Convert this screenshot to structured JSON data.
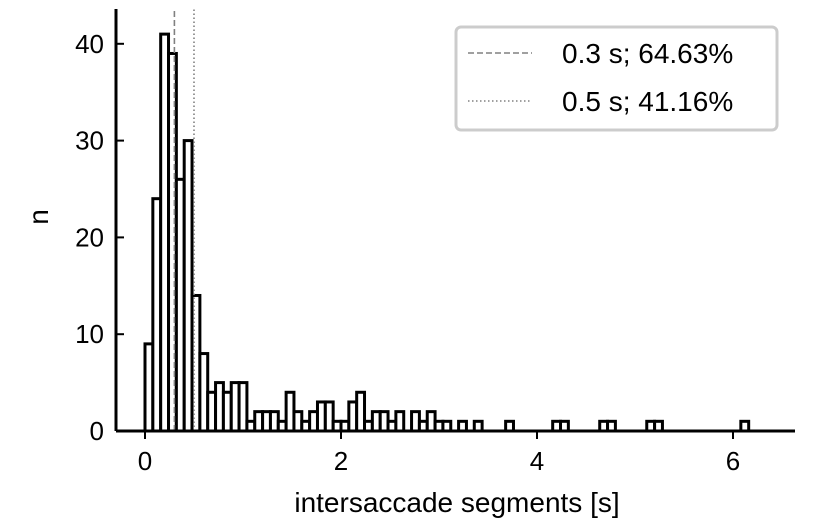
{
  "chart_data": {
    "type": "bar",
    "title": "",
    "xlabel": "intersaccade segments [s]",
    "ylabel": "n",
    "xlim": [
      -0.3,
      6.6
    ],
    "ylim": [
      0,
      43
    ],
    "xticks": [
      "0",
      "2",
      "4",
      "6"
    ],
    "yticks": [
      "0",
      "10",
      "20",
      "30",
      "40"
    ],
    "grid": false,
    "bin_width": 0.08,
    "bin_start": 0.0,
    "values": [
      9,
      24,
      41,
      39,
      26,
      30,
      14,
      8,
      4,
      5,
      4,
      5,
      5,
      1,
      2,
      2,
      2,
      1,
      4,
      2,
      1,
      2,
      3,
      3,
      1,
      1,
      3,
      4,
      1,
      2,
      2,
      1,
      2,
      0,
      2,
      1,
      2,
      1,
      1,
      0,
      1,
      0,
      1,
      0,
      0,
      0,
      1,
      0,
      0,
      0,
      0,
      0,
      1,
      1,
      0,
      0,
      0,
      0,
      1,
      1,
      0,
      0,
      0,
      0,
      1,
      1,
      0,
      0,
      0,
      0,
      0,
      0,
      0,
      0,
      0,
      0,
      1,
      0
    ],
    "reference_lines": [
      {
        "x": 0.3,
        "style": "dashed",
        "label": "0.3 s; 64.63%"
      },
      {
        "x": 0.5,
        "style": "dotted",
        "label": "0.5 s; 41.16%"
      }
    ],
    "legend_position": "top-right",
    "colors": {
      "bar_fill": "#ffffff",
      "bar_edge": "#000000",
      "ref_line": "#808080",
      "legend_border": "#cccccc"
    }
  }
}
